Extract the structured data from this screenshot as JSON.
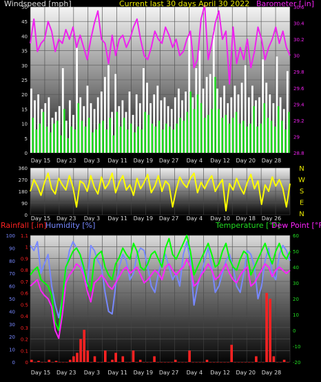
{
  "header": {
    "left_title": "Windspeed [mph]",
    "center_title": "Current last 30 days April 30 2022",
    "right_title": "Barometer [.in]"
  },
  "colors": {
    "windspeed_gust": "#ffffff",
    "windspeed_avg": "#22dd22",
    "barometer": "#ee22ee",
    "direction": "#ffff00",
    "rainfall": "#ff2222",
    "humidity": "#7788ff",
    "temperature": "#00ff00",
    "dewpoint": "#ff22ff"
  },
  "x_ticks": [
    "Day 15",
    "Day 23",
    "Day 3",
    "Day 11",
    "Day 19",
    "Day 27",
    "Day 4",
    "Day 12",
    "Day 20",
    "Day 28"
  ],
  "panel2_ticks": [
    "Day 15",
    "Day 23",
    "Day 3",
    "Day 11",
    "Day 19",
    "Day 27",
    "Day 4",
    "Day 10",
    "Day 18",
    "Day 26"
  ],
  "chart_data": [
    {
      "type": "line",
      "title": "Current last 30 days April 30 2022",
      "y_left_label": "Windspeed [mph]",
      "y_left_ticks": [
        "0",
        "5",
        "10",
        "15",
        "20",
        "25",
        "30",
        "35",
        "40",
        "45",
        "50"
      ],
      "y_left_range": [
        0,
        50
      ],
      "y_right_label": "Barometer [.in]",
      "y_right_ticks": [
        "28.8",
        "29",
        "29.2",
        "29.4",
        "29.6",
        "29.8",
        "30",
        "30.2",
        "30.4",
        "30.6"
      ],
      "y_right_range": [
        28.8,
        30.6
      ],
      "series": [
        {
          "name": "Barometer",
          "axis": "right",
          "values": [
            30.15,
            30.45,
            30.05,
            30.15,
            30.2,
            30.42,
            30.3,
            30.05,
            30.2,
            30.15,
            30.32,
            30.2,
            30.35,
            30.1,
            30.25,
            30.1,
            29.95,
            30.2,
            30.4,
            30.55,
            30.2,
            30.15,
            29.9,
            30.25,
            30.0,
            30.2,
            30.25,
            30.1,
            30.2,
            30.35,
            30.45,
            30.2,
            30.0,
            29.95,
            30.1,
            30.3,
            30.2,
            30.15,
            30.35,
            30.25,
            30.1,
            30.2,
            30.0,
            30.05,
            30.2,
            30.3,
            29.85,
            29.95,
            30.45,
            30.62,
            29.95,
            30.15,
            30.4,
            30.55,
            30.2,
            30.3,
            29.65,
            30.35,
            29.9,
            30.1,
            29.95,
            30.2,
            29.85,
            30.05,
            30.35,
            30.2,
            29.95,
            30.1,
            30.2,
            30.35,
            30.15,
            30.3,
            30.1,
            30.0
          ]
        },
        {
          "name": "Wind gust",
          "axis": "left",
          "values": [
            22,
            18,
            20,
            15,
            17,
            19,
            12,
            14,
            16,
            29,
            11,
            18,
            13,
            36,
            19,
            16,
            23,
            17,
            15,
            19,
            21,
            26,
            30,
            14,
            27,
            16,
            18,
            14,
            21,
            13,
            20,
            17,
            29,
            24,
            17,
            20,
            23,
            18,
            19,
            16,
            15,
            19,
            22,
            18,
            21,
            40,
            19,
            29,
            35,
            22,
            26,
            27,
            42,
            22,
            19,
            23,
            17,
            19,
            23,
            20,
            24,
            30,
            19,
            23,
            18,
            19,
            32,
            24,
            20,
            17,
            33,
            19,
            15,
            28
          ]
        },
        {
          "name": "Wind average",
          "axis": "left",
          "values": [
            12,
            8,
            10,
            14,
            9,
            7,
            10,
            11,
            6,
            15,
            5,
            9,
            8,
            17,
            11,
            9,
            12,
            7,
            8,
            10,
            11,
            8,
            12,
            6,
            14,
            9,
            12,
            8,
            10,
            7,
            9,
            8,
            14,
            13,
            10,
            9,
            11,
            8,
            10,
            9,
            8,
            10,
            12,
            11,
            14,
            21,
            15,
            20,
            17,
            12,
            13,
            15,
            26,
            15,
            12,
            13,
            10,
            12,
            14,
            10,
            11,
            9,
            10,
            16,
            9,
            10,
            17,
            12,
            11,
            9,
            16,
            11,
            8,
            14
          ]
        }
      ]
    },
    {
      "type": "line",
      "y_ticks": [
        "0",
        "90",
        "180",
        "270",
        "360"
      ],
      "y_range": [
        0,
        360
      ],
      "compass_labels": [
        "N",
        "W",
        "S",
        "E",
        "N"
      ],
      "series": [
        {
          "name": "Wind direction",
          "values": [
            180,
            270,
            220,
            150,
            250,
            320,
            200,
            160,
            280,
            230,
            190,
            300,
            210,
            60,
            260,
            240,
            180,
            300,
            210,
            160,
            290,
            200,
            240,
            320,
            170,
            250,
            300,
            190,
            230,
            150,
            280,
            200,
            250,
            310,
            170,
            220,
            300,
            180,
            260,
            230,
            60,
            190,
            290,
            240,
            210,
            280,
            320,
            170,
            250,
            200,
            260,
            300,
            180,
            230,
            270,
            30,
            240,
            190,
            280,
            210,
            160,
            250,
            310,
            200,
            260,
            80,
            230,
            180,
            290,
            220,
            270,
            200,
            60,
            240
          ]
        }
      ]
    },
    {
      "type": "line",
      "title_left": "Rainfall [.in]",
      "title_humidity": "Humidity [%]",
      "title_temperature": "Temperature [°F]",
      "title_dewpoint": "Dew Point [°F]",
      "y_rain_ticks": [
        "0",
        "0.1",
        "0.2",
        "0.3",
        "0.4",
        "0.5",
        "0.6",
        "0.7",
        "0.8",
        "0.9",
        "1",
        "1.1"
      ],
      "y_rain_range": [
        0,
        1.1
      ],
      "y_humidity_ticks": [
        "0",
        "10",
        "20",
        "30",
        "40",
        "50",
        "60",
        "70",
        "80",
        "90",
        "100"
      ],
      "y_humidity_range": [
        0,
        100
      ],
      "y_temp_ticks": [
        "-20",
        "-10",
        "0",
        "10",
        "20",
        "30",
        "40",
        "50",
        "60"
      ],
      "y_temp_range": [
        -20,
        60
      ],
      "series": [
        {
          "name": "Humidity",
          "axis": "humidity",
          "values": [
            92,
            88,
            95,
            70,
            78,
            85,
            60,
            45,
            35,
            50,
            72,
            88,
            95,
            90,
            85,
            70,
            60,
            92,
            88,
            80,
            75,
            55,
            40,
            38,
            60,
            75,
            85,
            80,
            65,
            70,
            85,
            90,
            88,
            75,
            60,
            55,
            70,
            80,
            85,
            75,
            65,
            70,
            60,
            85,
            95,
            80,
            45,
            60,
            70,
            80,
            90,
            75,
            55,
            60,
            70,
            80,
            85,
            75,
            60,
            55,
            70,
            88,
            85,
            75,
            50,
            60,
            80,
            90,
            70,
            65,
            85,
            92,
            88,
            80
          ]
        },
        {
          "name": "Temperature",
          "axis": "temp",
          "values": [
            35,
            38,
            40,
            32,
            30,
            28,
            22,
            5,
            0,
            20,
            40,
            45,
            50,
            52,
            48,
            40,
            30,
            25,
            45,
            48,
            50,
            40,
            35,
            32,
            42,
            46,
            52,
            48,
            45,
            55,
            50,
            40,
            38,
            42,
            48,
            50,
            45,
            40,
            52,
            58,
            48,
            45,
            50,
            55,
            60,
            50,
            35,
            40,
            45,
            50,
            55,
            48,
            40,
            42,
            50,
            55,
            45,
            40,
            38,
            45,
            50,
            48,
            35,
            40,
            45,
            50,
            55,
            48,
            42,
            50,
            55,
            48,
            45,
            50
          ]
        },
        {
          "name": "Dew Point",
          "axis": "temp",
          "values": [
            28,
            30,
            32,
            25,
            22,
            20,
            15,
            0,
            -5,
            10,
            30,
            35,
            38,
            42,
            40,
            35,
            25,
            18,
            30,
            32,
            35,
            32,
            28,
            26,
            30,
            34,
            38,
            40,
            36,
            38,
            40,
            35,
            30,
            32,
            35,
            38,
            36,
            32,
            40,
            42,
            38,
            35,
            38,
            40,
            45,
            40,
            28,
            30,
            35,
            38,
            42,
            38,
            32,
            34,
            38,
            42,
            36,
            32,
            30,
            35,
            38,
            40,
            28,
            30,
            34,
            38,
            42,
            40,
            34,
            38,
            40,
            38,
            36,
            38
          ]
        },
        {
          "name": "Rainfall",
          "axis": "rain",
          "values": [
            0.02,
            0.0,
            0.01,
            0.0,
            0.0,
            0.02,
            0.0,
            0.01,
            0.0,
            0.0,
            0.0,
            0.02,
            0.05,
            0.08,
            0.2,
            0.28,
            0.1,
            0.0,
            0.05,
            0.0,
            0.0,
            0.1,
            0.0,
            0.02,
            0.08,
            0.0,
            0.05,
            0.0,
            0.0,
            0.1,
            0.0,
            0.02,
            0.0,
            0.0,
            0.0,
            0.05,
            0.0,
            0.0,
            0.0,
            0.0,
            0.0,
            0.02,
            0.0,
            0.0,
            0.0,
            0.1,
            0.0,
            0.0,
            0.0,
            0.0,
            0.02,
            0.0,
            0.0,
            0.0,
            0.0,
            0.0,
            0.0,
            0.15,
            0.0,
            0.0,
            0.0,
            0.0,
            0.0,
            0.0,
            0.05,
            0.0,
            0.0,
            0.6,
            0.55,
            0.05,
            0.0,
            0.0,
            0.02,
            0.0
          ]
        }
      ]
    }
  ]
}
